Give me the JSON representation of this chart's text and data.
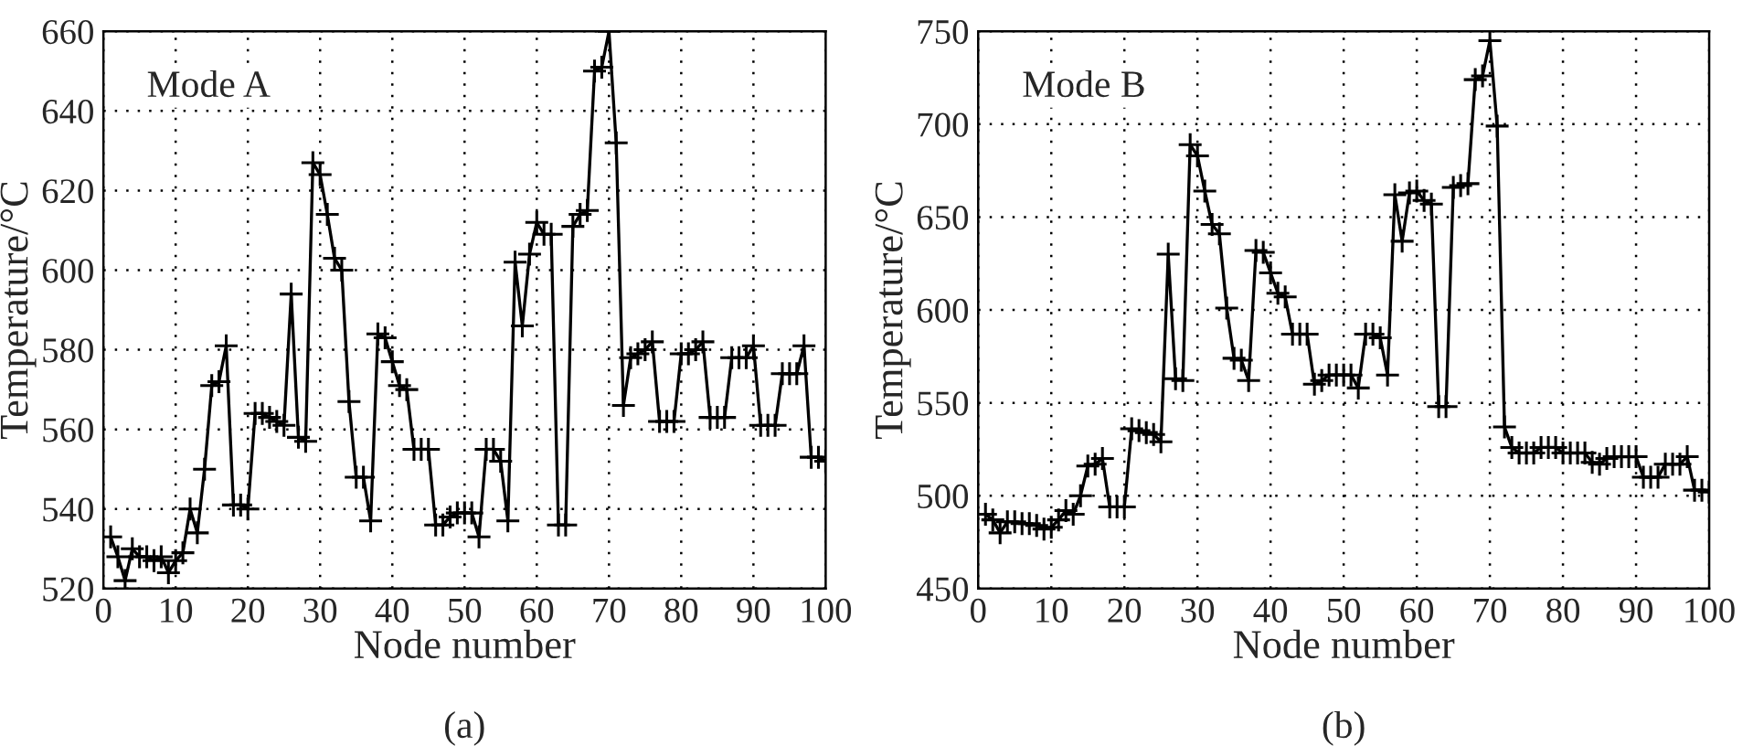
{
  "chart_data": [
    {
      "type": "line",
      "xlabel": "Node number",
      "ylabel": "Temperature/°C",
      "annotations": [
        "Mode A",
        "(a)"
      ],
      "x": [
        1,
        2,
        3,
        4,
        5,
        6,
        7,
        8,
        9,
        10,
        11,
        12,
        13,
        14,
        15,
        16,
        17,
        18,
        19,
        20,
        21,
        22,
        23,
        24,
        25,
        26,
        27,
        28,
        29,
        30,
        31,
        32,
        33,
        34,
        35,
        36,
        37,
        38,
        39,
        40,
        41,
        42,
        43,
        44,
        45,
        46,
        47,
        48,
        49,
        50,
        51,
        52,
        53,
        54,
        55,
        56,
        57,
        58,
        59,
        60,
        61,
        62,
        63,
        64,
        65,
        66,
        67,
        68,
        69,
        70,
        71,
        72,
        73,
        74,
        75,
        76,
        77,
        78,
        79,
        80,
        81,
        82,
        83,
        84,
        85,
        86,
        87,
        88,
        89,
        90,
        91,
        92,
        93,
        94,
        95,
        96,
        97,
        98,
        99,
        100
      ],
      "series": [
        {
          "color": "#000000",
          "values": [
            533,
            528,
            522,
            530,
            528,
            528,
            527,
            528,
            524,
            527,
            529,
            540,
            534,
            550,
            571,
            572,
            581,
            541,
            541,
            540,
            564,
            564,
            563,
            562,
            561,
            594,
            558,
            557,
            627,
            624,
            614,
            603,
            600,
            567,
            548,
            548,
            537,
            584,
            583,
            577,
            571,
            570,
            555,
            555,
            555,
            536,
            536,
            538,
            539,
            539,
            539,
            533,
            555,
            555,
            552,
            537,
            602,
            586,
            604,
            612,
            609,
            609,
            536,
            536,
            611,
            614,
            615,
            650,
            651,
            660,
            632,
            566,
            578,
            579,
            580,
            582,
            562,
            562,
            562,
            579,
            579,
            580,
            582,
            563,
            563,
            563,
            578,
            578,
            578,
            581,
            561,
            561,
            561,
            574,
            574,
            574,
            581,
            553,
            553,
            552
          ]
        }
      ],
      "xlim": [
        0,
        100
      ],
      "xticks": [
        0,
        10,
        20,
        30,
        40,
        50,
        60,
        70,
        80,
        90,
        100
      ],
      "ylim": [
        520,
        660
      ],
      "yticks": [
        520,
        540,
        560,
        580,
        600,
        620,
        640,
        660
      ],
      "grid": true,
      "marker": "cross",
      "line_style": "solid",
      "legend": false
    },
    {
      "type": "line",
      "xlabel": "Node number",
      "ylabel": "Temperature/°C",
      "annotations": [
        "Mode B",
        "(b)"
      ],
      "x": [
        1,
        2,
        3,
        4,
        5,
        6,
        7,
        8,
        9,
        10,
        11,
        12,
        13,
        14,
        15,
        16,
        17,
        18,
        19,
        20,
        21,
        22,
        23,
        24,
        25,
        26,
        27,
        28,
        29,
        30,
        31,
        32,
        33,
        34,
        35,
        36,
        37,
        38,
        39,
        40,
        41,
        42,
        43,
        44,
        45,
        46,
        47,
        48,
        49,
        50,
        51,
        52,
        53,
        54,
        55,
        56,
        57,
        58,
        59,
        60,
        61,
        62,
        63,
        64,
        65,
        66,
        67,
        68,
        69,
        70,
        71,
        72,
        73,
        74,
        75,
        76,
        77,
        78,
        79,
        80,
        81,
        82,
        83,
        84,
        85,
        86,
        87,
        88,
        89,
        90,
        91,
        92,
        93,
        94,
        95,
        96,
        97,
        98,
        99,
        100
      ],
      "series": [
        {
          "color": "#000000",
          "values": [
            490,
            487,
            480,
            486,
            486,
            485,
            485,
            484,
            482,
            483,
            487,
            492,
            490,
            500,
            516,
            517,
            520,
            494,
            494,
            494,
            536,
            535,
            534,
            533,
            529,
            630,
            563,
            562,
            689,
            683,
            664,
            646,
            641,
            601,
            574,
            573,
            562,
            632,
            631,
            620,
            609,
            607,
            587,
            587,
            587,
            560,
            562,
            565,
            565,
            565,
            565,
            558,
            587,
            587,
            585,
            565,
            662,
            637,
            663,
            664,
            659,
            657,
            548,
            548,
            666,
            667,
            668,
            724,
            726,
            745,
            699,
            537,
            526,
            523,
            523,
            523,
            526,
            526,
            526,
            523,
            523,
            523,
            523,
            518,
            517,
            520,
            521,
            521,
            521,
            521,
            510,
            510,
            510,
            517,
            517,
            517,
            521,
            503,
            503,
            502
          ]
        }
      ],
      "xlim": [
        0,
        100
      ],
      "xticks": [
        0,
        10,
        20,
        30,
        40,
        50,
        60,
        70,
        80,
        90,
        100
      ],
      "ylim": [
        450,
        750
      ],
      "yticks": [
        450,
        500,
        550,
        600,
        650,
        700,
        750
      ],
      "grid": true,
      "marker": "cross",
      "line_style": "solid",
      "legend": false
    }
  ]
}
